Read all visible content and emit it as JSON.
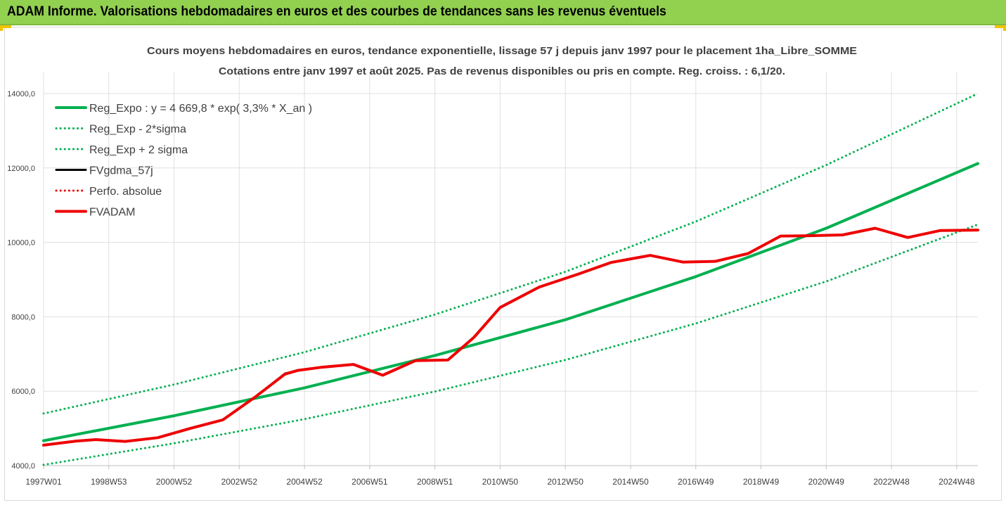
{
  "header": {
    "title": "ADAM Informe. Valorisations hebdomadaires en euros et des courbes de tendances sans les revenus éventuels"
  },
  "colors": {
    "header_bg": "#92d050",
    "trend_green": "#00b050",
    "actual_red": "#ee0000",
    "gdma_black": "#000000",
    "grid": "#e0e0e0"
  },
  "chart_data": {
    "type": "line",
    "title_lines": [
      "Cours moyens hebdomadaires en euros, tendance exponentielle, lissage 57 j depuis janv 1997 pour le placement 1ha_Libre_SOMME",
      "Cotations entre janv 1997 et août 2025.  Pas de revenus disponibles ou pris en compte. Reg. croiss. : 6,1/20."
    ],
    "xlabel": "",
    "ylabel": "",
    "x_range": [
      1997.0,
      2025.65
    ],
    "ylim": [
      4000,
      14000
    ],
    "y_ticks": [
      {
        "value": 4000,
        "label": "4000,0"
      },
      {
        "value": 6000,
        "label": "6000,0"
      },
      {
        "value": 8000,
        "label": "8000,0"
      },
      {
        "value": 10000,
        "label": "10000,0"
      },
      {
        "value": 12000,
        "label": "12000,0"
      },
      {
        "value": 14000,
        "label": "14000,0"
      }
    ],
    "x_ticks": [
      {
        "t": 1997.0,
        "label": "1997W01"
      },
      {
        "t": 1999.0,
        "label": "1998W53"
      },
      {
        "t": 2001.0,
        "label": "2000W52"
      },
      {
        "t": 2003.0,
        "label": "2002W52"
      },
      {
        "t": 2005.0,
        "label": "2004W52"
      },
      {
        "t": 2007.0,
        "label": "2006W51"
      },
      {
        "t": 2009.0,
        "label": "2008W51"
      },
      {
        "t": 2011.0,
        "label": "2010W50"
      },
      {
        "t": 2013.0,
        "label": "2012W50"
      },
      {
        "t": 2015.0,
        "label": "2014W50"
      },
      {
        "t": 2017.0,
        "label": "2016W49"
      },
      {
        "t": 2019.0,
        "label": "2018W49"
      },
      {
        "t": 2021.0,
        "label": "2020W49"
      },
      {
        "t": 2023.0,
        "label": "2022W48"
      },
      {
        "t": 2025.0,
        "label": "2024W48"
      }
    ],
    "grid": true,
    "legend_position": "top-left",
    "series": [
      {
        "name": "Reg_Expo : y = 4 669,8 * exp( 3,3% *  X_an )",
        "style": "solid",
        "color": "#00b050",
        "points": [
          [
            1997.0,
            4670
          ],
          [
            2001.0,
            5340
          ],
          [
            2005.0,
            6090
          ],
          [
            2009.0,
            6960
          ],
          [
            2013.0,
            7920
          ],
          [
            2017.0,
            9080
          ],
          [
            2021.0,
            10380
          ],
          [
            2025.65,
            12120
          ]
        ]
      },
      {
        "name": "Reg_Exp - 2*sigma",
        "style": "dotted",
        "color": "#00b050",
        "points": [
          [
            1997.0,
            4020
          ],
          [
            2001.0,
            4600
          ],
          [
            2005.0,
            5250
          ],
          [
            2009.0,
            5990
          ],
          [
            2013.0,
            6840
          ],
          [
            2017.0,
            7820
          ],
          [
            2021.0,
            8950
          ],
          [
            2025.65,
            10480
          ]
        ]
      },
      {
        "name": "Reg_Exp + 2 sigma",
        "style": "dotted",
        "color": "#00b050",
        "points": [
          [
            1997.0,
            5400
          ],
          [
            2001.0,
            6180
          ],
          [
            2005.0,
            7050
          ],
          [
            2009.0,
            8060
          ],
          [
            2013.0,
            9210
          ],
          [
            2017.0,
            10560
          ],
          [
            2021.0,
            12080
          ],
          [
            2025.65,
            14000
          ]
        ]
      },
      {
        "name": "FVgdma_57j",
        "style": "solid",
        "color": "#000000",
        "points": [
          [
            1997.0,
            4550
          ],
          [
            1998.0,
            4660
          ],
          [
            1998.6,
            4700
          ],
          [
            1999.5,
            4650
          ],
          [
            2000.5,
            4750
          ],
          [
            2001.5,
            5000
          ],
          [
            2002.5,
            5230
          ],
          [
            2003.5,
            5850
          ],
          [
            2004.4,
            6480
          ],
          [
            2004.8,
            6560
          ],
          [
            2005.5,
            6640
          ],
          [
            2006.5,
            6720
          ],
          [
            2007.4,
            6430
          ],
          [
            2008.4,
            6820
          ],
          [
            2009.4,
            6840
          ],
          [
            2010.2,
            7450
          ],
          [
            2011.0,
            8250
          ],
          [
            2012.2,
            8800
          ],
          [
            2013.4,
            9150
          ],
          [
            2014.4,
            9460
          ],
          [
            2015.6,
            9650
          ],
          [
            2016.6,
            9470
          ],
          [
            2017.6,
            9490
          ],
          [
            2018.6,
            9700
          ],
          [
            2019.6,
            10170
          ],
          [
            2020.5,
            10180
          ],
          [
            2021.5,
            10200
          ],
          [
            2022.5,
            10380
          ],
          [
            2023.5,
            10130
          ],
          [
            2024.5,
            10320
          ],
          [
            2025.65,
            10330
          ]
        ]
      },
      {
        "name": "Perfo. absolue",
        "style": "dotted",
        "color": "#ee0000",
        "points": []
      },
      {
        "name": "FVADAM",
        "style": "solid",
        "color": "#ee0000",
        "points": [
          [
            1997.0,
            4550
          ],
          [
            1998.0,
            4660
          ],
          [
            1998.6,
            4700
          ],
          [
            1999.5,
            4650
          ],
          [
            2000.5,
            4750
          ],
          [
            2001.5,
            5000
          ],
          [
            2002.5,
            5230
          ],
          [
            2003.5,
            5850
          ],
          [
            2004.4,
            6460
          ],
          [
            2004.8,
            6560
          ],
          [
            2005.5,
            6640
          ],
          [
            2006.5,
            6720
          ],
          [
            2007.4,
            6430
          ],
          [
            2008.4,
            6820
          ],
          [
            2009.4,
            6840
          ],
          [
            2010.2,
            7450
          ],
          [
            2011.0,
            8250
          ],
          [
            2012.2,
            8800
          ],
          [
            2013.4,
            9150
          ],
          [
            2014.4,
            9460
          ],
          [
            2015.6,
            9650
          ],
          [
            2016.6,
            9470
          ],
          [
            2017.6,
            9490
          ],
          [
            2018.6,
            9700
          ],
          [
            2019.6,
            10170
          ],
          [
            2020.5,
            10180
          ],
          [
            2021.5,
            10200
          ],
          [
            2022.5,
            10380
          ],
          [
            2023.5,
            10130
          ],
          [
            2024.5,
            10320
          ],
          [
            2025.65,
            10330
          ]
        ]
      }
    ]
  }
}
